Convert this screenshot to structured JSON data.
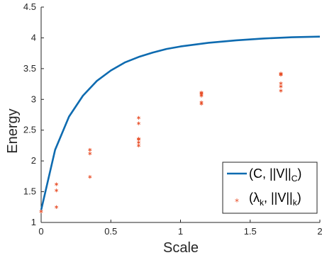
{
  "chart_data": {
    "type": "scatter",
    "title": "",
    "xlabel": "Scale",
    "ylabel": "Energy",
    "xlim": [
      0,
      2
    ],
    "ylim": [
      1,
      4.5
    ],
    "x_ticks": [
      "0",
      "0.5",
      "1",
      "1.5",
      "2"
    ],
    "y_ticks": [
      "1",
      "1.5",
      "2",
      "2.5",
      "3",
      "3.5",
      "4",
      "4.5"
    ],
    "grid": false,
    "legend_position": "bottom-right",
    "legend": {
      "curve": {
        "pre": "(C, ||V||",
        "sub": "C",
        "post": ")"
      },
      "points": {
        "pre": "(λ",
        "sub1": "k",
        "mid": ", ||V||",
        "sub2": "k",
        "post": ")"
      }
    },
    "colors": {
      "curve": "#0e6bb0",
      "points": "#e8502a"
    },
    "series": [
      {
        "kind": "line",
        "x": [
          0,
          0.1,
          0.2,
          0.3,
          0.4,
          0.5,
          0.6,
          0.7,
          0.8,
          0.9,
          1.0,
          1.2,
          1.4,
          1.6,
          1.8,
          2.0
        ],
        "y": [
          1.2,
          2.18,
          2.72,
          3.06,
          3.3,
          3.47,
          3.6,
          3.69,
          3.76,
          3.82,
          3.86,
          3.92,
          3.96,
          3.99,
          4.01,
          4.02
        ]
      },
      {
        "kind": "scatter",
        "x": [
          0,
          0.11,
          0.11,
          0.11,
          0.35,
          0.35,
          0.35,
          0.7,
          0.7,
          0.7,
          0.7,
          0.7,
          0.7,
          1.15,
          1.15,
          1.15,
          1.15,
          1.15,
          1.15,
          1.72,
          1.72,
          1.72,
          1.72,
          1.72,
          1.72
        ],
        "y": [
          1.18,
          1.25,
          1.52,
          1.62,
          1.74,
          2.12,
          2.18,
          2.25,
          2.3,
          2.35,
          2.36,
          2.61,
          2.7,
          2.93,
          2.95,
          3.06,
          3.08,
          3.1,
          3.11,
          3.14,
          3.21,
          3.26,
          3.4,
          3.41,
          3.42
        ]
      }
    ]
  }
}
